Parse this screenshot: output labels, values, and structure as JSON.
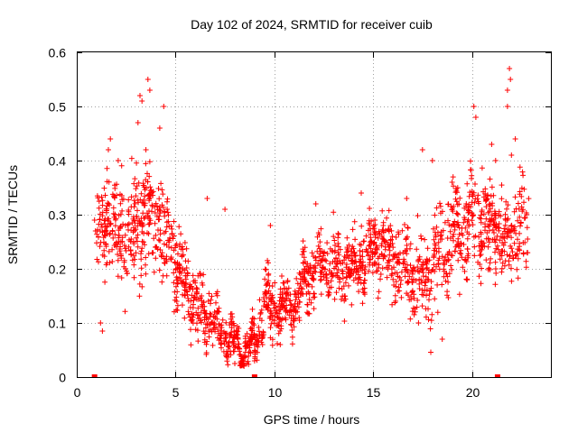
{
  "chart_data": {
    "type": "scatter",
    "title": "Day 102 of 2024, SRMTID for receiver cuib",
    "xlabel": "GPS time / hours",
    "ylabel": "SRMTID / TECUs",
    "xlim": [
      0,
      24
    ],
    "ylim": [
      0,
      0.6
    ],
    "xticks": [
      0,
      5,
      10,
      15,
      20
    ],
    "xtick_labels": [
      "0",
      "5",
      "10",
      "15",
      "20"
    ],
    "yticks": [
      0,
      0.1,
      0.2,
      0.3,
      0.4,
      0.5,
      0.6
    ],
    "ytick_labels": [
      "0",
      "0.1",
      "0.2",
      "0.3",
      "0.4",
      "0.5",
      "0.6"
    ],
    "grid": true,
    "marker": "plus",
    "color": "#ff0000",
    "trend": [
      [
        1.0,
        0.25
      ],
      [
        1.5,
        0.3
      ],
      [
        2.0,
        0.27
      ],
      [
        2.5,
        0.26
      ],
      [
        3.0,
        0.28
      ],
      [
        3.5,
        0.3
      ],
      [
        4.0,
        0.28
      ],
      [
        4.5,
        0.26
      ],
      [
        5.0,
        0.21
      ],
      [
        5.5,
        0.17
      ],
      [
        6.0,
        0.14
      ],
      [
        6.5,
        0.12
      ],
      [
        7.0,
        0.1
      ],
      [
        7.5,
        0.08
      ],
      [
        8.0,
        0.06
      ],
      [
        8.5,
        0.05
      ],
      [
        9.0,
        0.06
      ],
      [
        9.5,
        0.14
      ],
      [
        10.0,
        0.12
      ],
      [
        10.5,
        0.13
      ],
      [
        11.0,
        0.14
      ],
      [
        11.5,
        0.17
      ],
      [
        12.0,
        0.2
      ],
      [
        12.5,
        0.21
      ],
      [
        13.0,
        0.2
      ],
      [
        13.5,
        0.2
      ],
      [
        14.0,
        0.21
      ],
      [
        14.5,
        0.22
      ],
      [
        15.0,
        0.23
      ],
      [
        15.5,
        0.24
      ],
      [
        16.0,
        0.22
      ],
      [
        16.5,
        0.21
      ],
      [
        17.0,
        0.19
      ],
      [
        17.5,
        0.17
      ],
      [
        18.0,
        0.2
      ],
      [
        18.5,
        0.24
      ],
      [
        19.0,
        0.26
      ],
      [
        19.5,
        0.28
      ],
      [
        20.0,
        0.29
      ],
      [
        20.5,
        0.29
      ],
      [
        21.0,
        0.27
      ],
      [
        21.5,
        0.25
      ],
      [
        22.0,
        0.26
      ],
      [
        22.5,
        0.28
      ],
      [
        22.9,
        0.3
      ]
    ],
    "spread": [
      [
        1.0,
        0.05
      ],
      [
        3.0,
        0.07
      ],
      [
        5.0,
        0.05
      ],
      [
        6.5,
        0.04
      ],
      [
        7.5,
        0.03
      ],
      [
        8.5,
        0.015
      ],
      [
        9.5,
        0.04
      ],
      [
        11.0,
        0.03
      ],
      [
        12.0,
        0.035
      ],
      [
        14.0,
        0.045
      ],
      [
        16.0,
        0.045
      ],
      [
        18.0,
        0.06
      ],
      [
        20.0,
        0.06
      ],
      [
        22.9,
        0.06
      ]
    ],
    "outliers": [
      [
        1.7,
        0.44
      ],
      [
        1.6,
        0.42
      ],
      [
        3.2,
        0.52
      ],
      [
        3.3,
        0.51
      ],
      [
        3.6,
        0.55
      ],
      [
        3.7,
        0.53
      ],
      [
        3.1,
        0.47
      ],
      [
        4.4,
        0.5
      ],
      [
        4.2,
        0.46
      ],
      [
        2.1,
        0.4
      ],
      [
        3.5,
        0.42
      ],
      [
        6.6,
        0.33
      ],
      [
        7.5,
        0.31
      ],
      [
        9.8,
        0.28
      ],
      [
        12.1,
        0.32
      ],
      [
        14.4,
        0.34
      ],
      [
        16.7,
        0.33
      ],
      [
        17.5,
        0.42
      ],
      [
        18.0,
        0.4
      ],
      [
        19.0,
        0.36
      ],
      [
        20.1,
        0.5
      ],
      [
        20.2,
        0.48
      ],
      [
        21.0,
        0.43
      ],
      [
        21.2,
        0.4
      ],
      [
        21.9,
        0.57
      ],
      [
        21.95,
        0.55
      ],
      [
        21.8,
        0.53
      ],
      [
        21.8,
        0.5
      ],
      [
        22.2,
        0.44
      ],
      [
        22.0,
        0.41
      ],
      [
        0.9,
        0.29
      ],
      [
        0.95,
        0.27
      ],
      [
        1.2,
        0.1
      ],
      [
        1.3,
        0.085
      ],
      [
        8.0,
        0.025
      ],
      [
        8.6,
        0.025
      ],
      [
        9.0,
        0.03
      ],
      [
        10.3,
        0.06
      ],
      [
        18.5,
        0.07
      ],
      [
        17.3,
        0.1
      ]
    ],
    "baseline_markers": [
      0.9,
      9.0,
      21.3
    ],
    "n_points": 2000
  }
}
